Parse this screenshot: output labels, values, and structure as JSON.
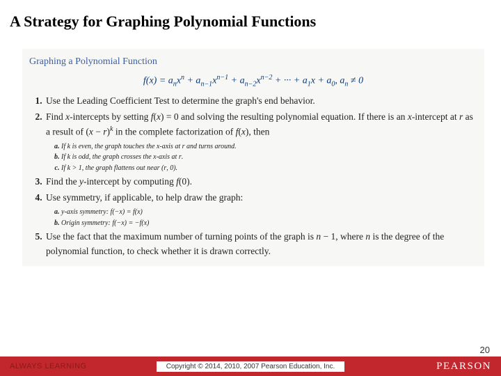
{
  "header": {
    "title": "A Strategy for Graphing Polynomial Functions"
  },
  "box": {
    "title": "Graphing a Polynomial Function",
    "items": [
      {
        "text": "Use the Leading Coefficient Test to determine the graph's end behavior."
      },
      {
        "text_html": "Find <span class='mi'>x</span>-intercepts by setting <span class='mi'>f</span>(<span class='mi'>x</span>) = 0 and solving the resulting polynomial equation. If there is an <span class='mi'>x</span>-intercept at <span class='mi'>r</span> as a result of (<span class='mi'>x</span> − <span class='mi'>r</span>)<span class='sup'>k</span> in the complete factorization of <span class='mi'>f</span>(<span class='mi'>x</span>), then",
        "sub": [
          "If <span class='mi'>k</span> is even, the graph touches the <span class='mi'>x</span>-axis at <span class='mi'>r</span> and turns around.",
          "If <span class='mi'>k</span> is odd, the graph crosses the <span class='mi'>x</span>-axis at <span class='mi'>r</span>.",
          "If <span class='mi'>k</span> &gt; 1, the graph flattens out near (<span class='mi'>r</span>, 0)."
        ]
      },
      {
        "text_html": "Find the <span class='mi'>y</span>-intercept by computing <span class='mi'>f</span>(0)."
      },
      {
        "text_html": "Use symmetry, if applicable, to help draw the graph:",
        "sub": [
          "<span class='mi'>y</span>-axis symmetry: <span class='mi'>f</span>(−<span class='mi'>x</span>) = <span class='mi'>f</span>(<span class='mi'>x</span>)",
          "Origin symmetry: <span class='mi'>f</span>(−<span class='mi'>x</span>) = −<span class='mi'>f</span>(<span class='mi'>x</span>)"
        ]
      },
      {
        "text_html": "Use the fact that the maximum number of turning points of the graph is <span class='mi'>n</span> − 1, where <span class='mi'>n</span> is the degree of the polynomial function, to check whether it is drawn correctly."
      }
    ]
  },
  "footer": {
    "left": "ALWAYS LEARNING",
    "center": "Copyright © 2014, 2010, 2007 Pearson Education, Inc.",
    "right": "PEARSON"
  },
  "page": "20"
}
